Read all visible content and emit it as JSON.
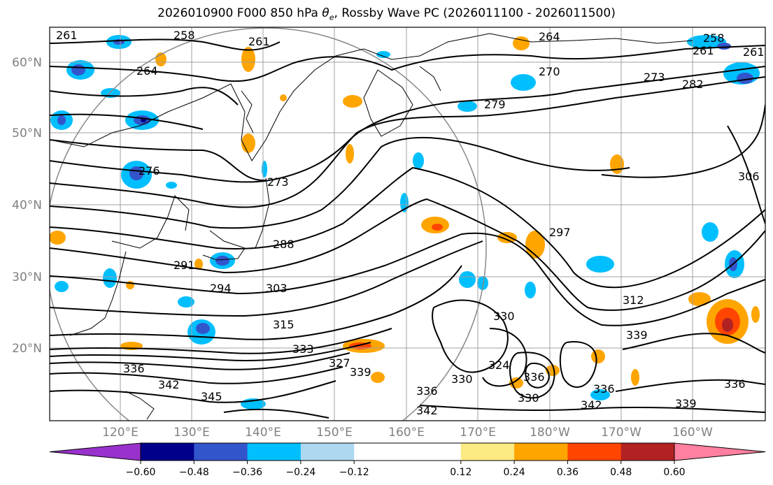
{
  "title": {
    "pre": "2026010900 F000 850 hPa ",
    "theta": "θ",
    "sub": "e",
    "post": ", Rossby Wave PC (2026011100 - 2026011500)"
  },
  "lat_labels": [
    "60°N",
    "50°N",
    "40°N",
    "30°N",
    "20°N"
  ],
  "lon_labels": [
    "120°E",
    "130°E",
    "140°E",
    "150°E",
    "160°E",
    "170°E",
    "180°W",
    "170°W",
    "160°W"
  ],
  "colorbar": {
    "colors": [
      "#9932cc",
      "#00008b",
      "#3355cc",
      "#00bfff",
      "#add8f0",
      "#ffffff",
      "#ffffff",
      "#fcea82",
      "#ffa500",
      "#ff4500",
      "#b22222",
      "#ff80a0"
    ],
    "tick_labels": [
      "−0.60",
      "−0.48",
      "−0.36",
      "−0.24",
      "−0.12",
      "0.12",
      "0.24",
      "0.36",
      "0.48",
      "0.60"
    ]
  },
  "contour_labels": [
    "261",
    "258",
    "264",
    "261",
    "264",
    "270",
    "273",
    "279",
    "282",
    "261",
    "258",
    "261",
    "276",
    "273",
    "288",
    "306",
    "291",
    "294",
    "303",
    "297",
    "315",
    "312",
    "333",
    "330",
    "336",
    "327",
    "342",
    "345",
    "339",
    "330",
    "324",
    "336",
    "330",
    "336",
    "339",
    "342",
    "336",
    "339",
    "336",
    "342"
  ]
}
